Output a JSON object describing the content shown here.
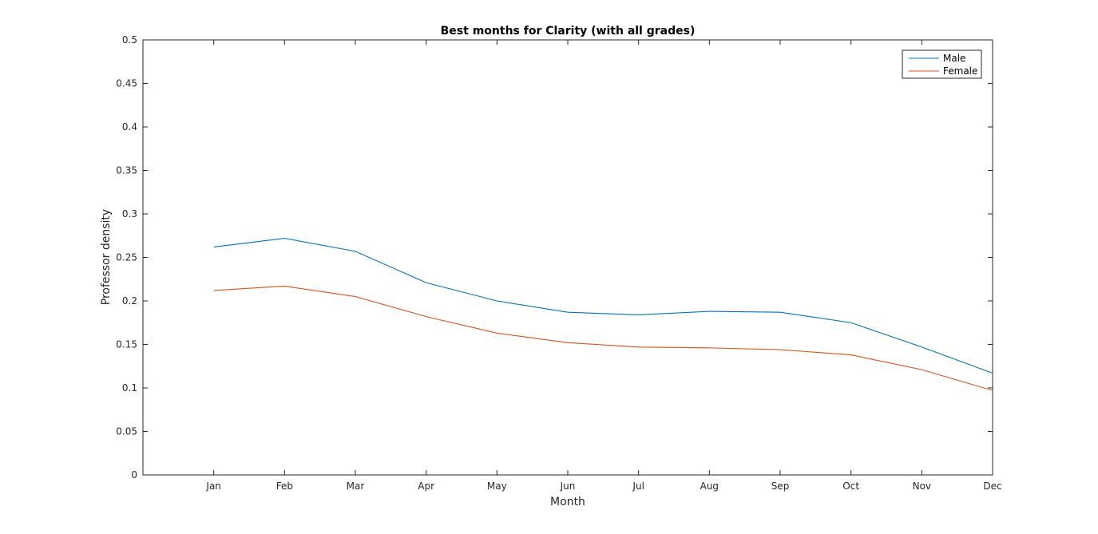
{
  "chart_data": {
    "type": "line",
    "title": "Best months for Clarity (with all grades)",
    "xlabel": "Month",
    "ylabel": "Professor density",
    "categories": [
      "Jan",
      "Feb",
      "Mar",
      "Apr",
      "May",
      "Jun",
      "Jul",
      "Aug",
      "Sep",
      "Oct",
      "Nov",
      "Dec"
    ],
    "series": [
      {
        "name": "Male",
        "color": "#0072bd",
        "values": [
          0.262,
          0.272,
          0.257,
          0.221,
          0.2,
          0.187,
          0.184,
          0.188,
          0.187,
          0.175,
          0.147,
          0.117
        ]
      },
      {
        "name": "Female",
        "color": "#d95319",
        "values": [
          0.212,
          0.217,
          0.205,
          0.182,
          0.163,
          0.152,
          0.147,
          0.146,
          0.144,
          0.138,
          0.121,
          0.097
        ]
      }
    ],
    "ylim": [
      0,
      0.5
    ],
    "yticks": [
      "0",
      "0.05",
      "0.1",
      "0.15",
      "0.2",
      "0.25",
      "0.3",
      "0.35",
      "0.4",
      "0.45",
      "0.5"
    ],
    "xlim_index": [
      0,
      12
    ],
    "grid": false,
    "legend_position": "top-right"
  }
}
